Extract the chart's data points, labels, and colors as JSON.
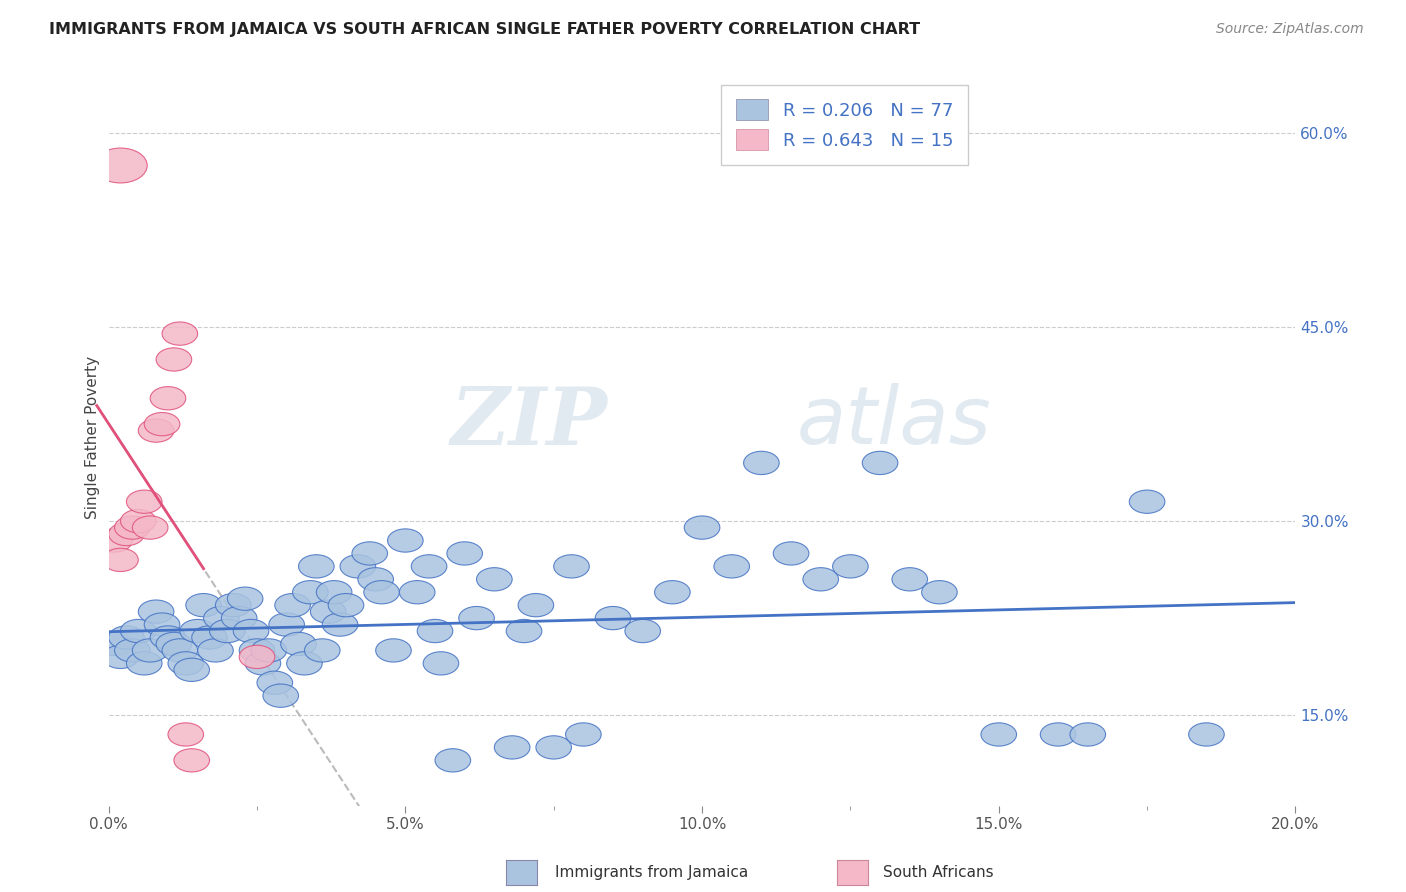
{
  "title": "IMMIGRANTS FROM JAMAICA VS SOUTH AFRICAN SINGLE FATHER POVERTY CORRELATION CHART",
  "source": "Source: ZipAtlas.com",
  "ylabel": "Single Father Poverty",
  "r_jamaica": 0.206,
  "n_jamaica": 77,
  "r_south_africa": 0.643,
  "n_south_africa": 15,
  "xlim": [
    0.0,
    0.2
  ],
  "ylim": [
    0.08,
    0.65
  ],
  "x_ticks": [
    0.0,
    0.05,
    0.1,
    0.15,
    0.2
  ],
  "x_tick_labels": [
    "0.0%",
    "5.0%",
    "10.0%",
    "15.0%",
    "20.0%"
  ],
  "y_ticks": [
    0.15,
    0.3,
    0.45,
    0.6
  ],
  "y_tick_labels": [
    "15.0%",
    "30.0%",
    "45.0%",
    "60.0%"
  ],
  "color_jamaica": "#aac4e0",
  "color_south_africa": "#f4b8c8",
  "trendline_jamaica": "#4472c4",
  "trendline_south_africa": "#e0507a",
  "watermark_zip": "ZIP",
  "watermark_atlas": "atlas",
  "background_color": "#ffffff",
  "grid_color": "#cccccc",
  "title_color": "#222222",
  "axis_label_color": "#444444",
  "legend_r_color": "#4472c4",
  "jamaica_scatter": [
    [
      0.001,
      0.205
    ],
    [
      0.002,
      0.195
    ],
    [
      0.003,
      0.21
    ],
    [
      0.004,
      0.2
    ],
    [
      0.005,
      0.215
    ],
    [
      0.006,
      0.19
    ],
    [
      0.007,
      0.2
    ],
    [
      0.008,
      0.23
    ],
    [
      0.009,
      0.22
    ],
    [
      0.01,
      0.21
    ],
    [
      0.011,
      0.205
    ],
    [
      0.012,
      0.2
    ],
    [
      0.013,
      0.19
    ],
    [
      0.014,
      0.185
    ],
    [
      0.015,
      0.215
    ],
    [
      0.016,
      0.235
    ],
    [
      0.017,
      0.21
    ],
    [
      0.018,
      0.2
    ],
    [
      0.019,
      0.225
    ],
    [
      0.02,
      0.215
    ],
    [
      0.021,
      0.235
    ],
    [
      0.022,
      0.225
    ],
    [
      0.023,
      0.24
    ],
    [
      0.024,
      0.215
    ],
    [
      0.025,
      0.2
    ],
    [
      0.026,
      0.19
    ],
    [
      0.027,
      0.2
    ],
    [
      0.028,
      0.175
    ],
    [
      0.029,
      0.165
    ],
    [
      0.03,
      0.22
    ],
    [
      0.031,
      0.235
    ],
    [
      0.032,
      0.205
    ],
    [
      0.033,
      0.19
    ],
    [
      0.034,
      0.245
    ],
    [
      0.035,
      0.265
    ],
    [
      0.036,
      0.2
    ],
    [
      0.037,
      0.23
    ],
    [
      0.038,
      0.245
    ],
    [
      0.039,
      0.22
    ],
    [
      0.04,
      0.235
    ],
    [
      0.042,
      0.265
    ],
    [
      0.044,
      0.275
    ],
    [
      0.045,
      0.255
    ],
    [
      0.046,
      0.245
    ],
    [
      0.048,
      0.2
    ],
    [
      0.05,
      0.285
    ],
    [
      0.052,
      0.245
    ],
    [
      0.054,
      0.265
    ],
    [
      0.055,
      0.215
    ],
    [
      0.056,
      0.19
    ],
    [
      0.058,
      0.115
    ],
    [
      0.06,
      0.275
    ],
    [
      0.062,
      0.225
    ],
    [
      0.065,
      0.255
    ],
    [
      0.068,
      0.125
    ],
    [
      0.07,
      0.215
    ],
    [
      0.072,
      0.235
    ],
    [
      0.075,
      0.125
    ],
    [
      0.078,
      0.265
    ],
    [
      0.08,
      0.135
    ],
    [
      0.085,
      0.225
    ],
    [
      0.09,
      0.215
    ],
    [
      0.095,
      0.245
    ],
    [
      0.1,
      0.295
    ],
    [
      0.105,
      0.265
    ],
    [
      0.11,
      0.345
    ],
    [
      0.115,
      0.275
    ],
    [
      0.12,
      0.255
    ],
    [
      0.125,
      0.265
    ],
    [
      0.13,
      0.345
    ],
    [
      0.135,
      0.255
    ],
    [
      0.14,
      0.245
    ],
    [
      0.15,
      0.135
    ],
    [
      0.16,
      0.135
    ],
    [
      0.165,
      0.135
    ],
    [
      0.175,
      0.315
    ],
    [
      0.185,
      0.135
    ]
  ],
  "south_africa_scatter": [
    [
      0.001,
      0.285
    ],
    [
      0.002,
      0.27
    ],
    [
      0.003,
      0.29
    ],
    [
      0.004,
      0.295
    ],
    [
      0.005,
      0.3
    ],
    [
      0.006,
      0.315
    ],
    [
      0.007,
      0.295
    ],
    [
      0.008,
      0.37
    ],
    [
      0.009,
      0.375
    ],
    [
      0.01,
      0.395
    ],
    [
      0.011,
      0.425
    ],
    [
      0.012,
      0.445
    ],
    [
      0.013,
      0.135
    ],
    [
      0.014,
      0.115
    ],
    [
      0.025,
      0.195
    ]
  ],
  "south_africa_outlier": [
    0.002,
    0.575
  ]
}
